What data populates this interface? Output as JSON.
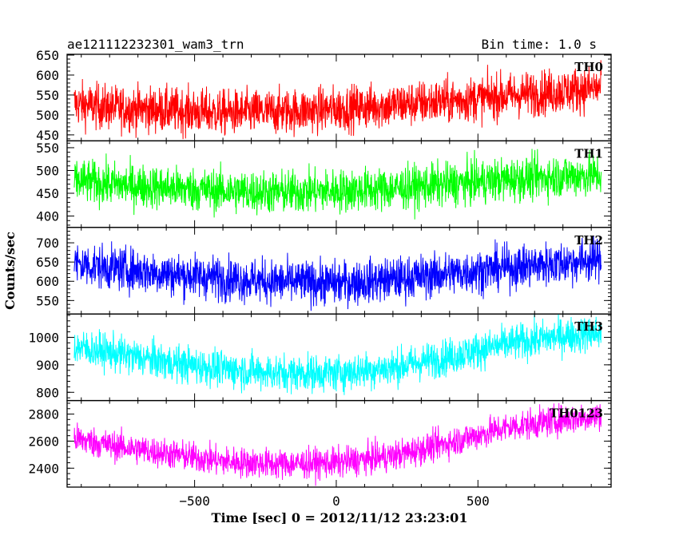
{
  "header": {
    "title": "ae121112232301_wam3_trn",
    "bin_time": "Bin time: 1.0 s"
  },
  "chart_data": {
    "type": "line",
    "xlabel": "Time [sec] 0 = 2012/11/12 23:23:01",
    "ylabel": "Counts/sec",
    "xlim": [
      -950,
      970
    ],
    "xticks": [
      -500,
      0,
      500
    ],
    "xtick_labels": [
      "−500",
      "0",
      "500"
    ],
    "x_range": [
      -925,
      935
    ],
    "bin_time_s": 1.0,
    "grid": false,
    "panels": [
      {
        "name": "TH0",
        "color": "#ff0000",
        "ylim": [
          435,
          652
        ],
        "yticks": [
          450,
          500,
          550,
          600,
          650
        ],
        "x": [
          -925,
          -800,
          -600,
          -400,
          -200,
          0,
          200,
          400,
          600,
          800,
          935
        ],
        "mean": [
          528,
          518,
          512,
          505,
          508,
          515,
          525,
          535,
          548,
          560,
          568
        ],
        "noise": 38
      },
      {
        "name": "TH1",
        "color": "#00ff00",
        "ylim": [
          375,
          565
        ],
        "yticks": [
          400,
          450,
          500,
          550
        ],
        "x": [
          -925,
          -800,
          -600,
          -400,
          -200,
          0,
          200,
          400,
          600,
          800,
          935
        ],
        "mean": [
          478,
          470,
          462,
          455,
          452,
          455,
          460,
          470,
          480,
          488,
          490
        ],
        "noise": 32
      },
      {
        "name": "TH2",
        "color": "#0000ff",
        "ylim": [
          515,
          740
        ],
        "yticks": [
          550,
          600,
          650,
          700
        ],
        "x": [
          -925,
          -800,
          -600,
          -400,
          -200,
          0,
          200,
          400,
          600,
          800,
          935
        ],
        "mean": [
          645,
          635,
          620,
          608,
          598,
          595,
          605,
          620,
          635,
          648,
          658
        ],
        "noise": 38
      },
      {
        "name": "TH3",
        "color": "#00ffff",
        "ylim": [
          770,
          1085
        ],
        "yticks": [
          800,
          900,
          1000
        ],
        "x": [
          -925,
          -800,
          -600,
          -400,
          -200,
          0,
          200,
          400,
          600,
          800,
          935
        ],
        "mean": [
          965,
          945,
          910,
          885,
          870,
          870,
          890,
          930,
          975,
          1005,
          1015
        ],
        "noise": 45
      },
      {
        "name": "TH0123",
        "color": "#ff00ff",
        "ylim": [
          2260,
          2900
        ],
        "yticks": [
          2400,
          2600,
          2800
        ],
        "x": [
          -925,
          -800,
          -600,
          -400,
          -200,
          0,
          200,
          400,
          600,
          800,
          935
        ],
        "mean": [
          2620,
          2570,
          2510,
          2450,
          2430,
          2440,
          2490,
          2590,
          2700,
          2760,
          2790
        ],
        "noise": 75
      }
    ]
  }
}
